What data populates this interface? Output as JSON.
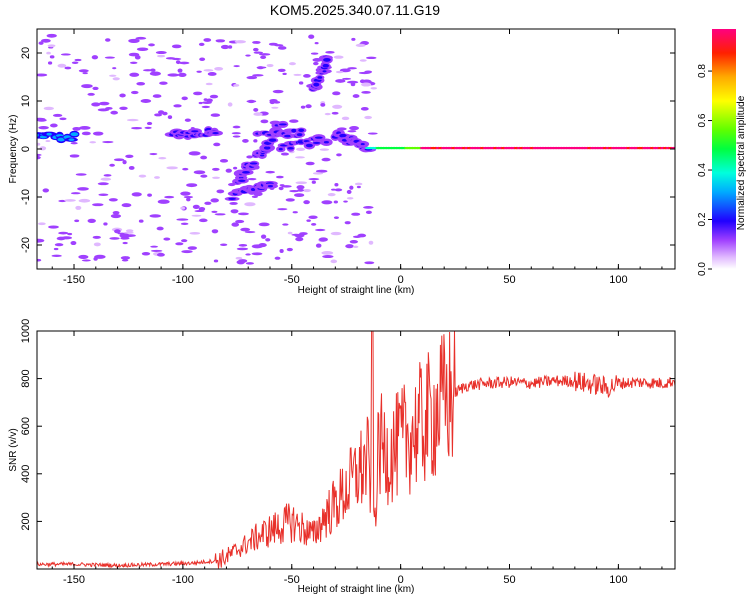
{
  "title": "KOM5.2025.340.07.11.G19",
  "chart_data": [
    {
      "type": "heatmap",
      "xlabel": "Height of straight line (km)",
      "ylabel": "Frequency (Hz)",
      "xlim": [
        -167,
        126
      ],
      "ylim": [
        -25,
        25
      ],
      "xticks": [
        -150,
        -100,
        -50,
        0,
        50,
        100
      ],
      "yticks": [
        -20,
        -10,
        0,
        10,
        20
      ],
      "colorbar": {
        "label": "Normalized spectral amplitude",
        "range": [
          0,
          0.97
        ],
        "ticks": [
          0.0,
          0.2,
          0.4,
          0.6,
          0.8
        ]
      },
      "features": [
        {
          "name": "main carrier line",
          "x": [
            -15,
            126
          ],
          "freq": 0,
          "amplitude": "0.4-0.97"
        },
        {
          "name": "rising track upper",
          "x": [
            -40,
            -33
          ],
          "freq": [
            12,
            19
          ],
          "amplitude": "0.1-0.25"
        },
        {
          "name": "rising track middle",
          "x": [
            -75,
            -55
          ],
          "freq": [
            -7,
            5
          ],
          "amplitude": "0.1-0.25"
        },
        {
          "name": "lower track",
          "x": [
            -77,
            -60
          ],
          "freq": [
            -10,
            -7
          ],
          "amplitude": "0.1-0.2"
        },
        {
          "name": "blob cluster",
          "x": [
            -105,
            -85
          ],
          "freq": [
            2,
            4
          ],
          "amplitude": "0.1-0.25"
        },
        {
          "name": "left edge blob",
          "x": [
            -167,
            -150
          ],
          "freq": [
            2,
            3
          ],
          "amplitude": "0.1-0.25"
        }
      ]
    },
    {
      "type": "line",
      "xlabel": "Height of straight line (km)",
      "ylabel": "SNR (v/v)",
      "xlim": [
        -167,
        126
      ],
      "ylim": [
        0,
        1000
      ],
      "xticks": [
        -150,
        -100,
        -50,
        0,
        50,
        100
      ],
      "yticks": [
        200,
        400,
        600,
        800,
        1000
      ],
      "series": [
        {
          "name": "SNR",
          "color": "#e8302a",
          "x": [
            -167,
            -150,
            -130,
            -110,
            -95,
            -85,
            -80,
            -75,
            -70,
            -65,
            -60,
            -55,
            -50,
            -45,
            -40,
            -35,
            -30,
            -25,
            -20,
            -15,
            -12,
            -10,
            -5,
            0,
            5,
            10,
            15,
            20,
            25,
            30,
            40,
            50,
            60,
            70,
            80,
            85,
            90,
            95,
            100,
            110,
            120,
            126
          ],
          "y": [
            20,
            20,
            15,
            20,
            25,
            35,
            50,
            80,
            110,
            140,
            160,
            180,
            200,
            170,
            140,
            220,
            270,
            330,
            400,
            450,
            200,
            520,
            480,
            530,
            570,
            610,
            650,
            700,
            740,
            770,
            780,
            785,
            780,
            790,
            790,
            780,
            775,
            760,
            780,
            785,
            780,
            790
          ]
        }
      ]
    }
  ],
  "colors": {
    "line": "#e8302a",
    "heatmap_low": "#cc88ff",
    "heatmap_mid": "#0000ff",
    "heatmap_high": "#ff0080"
  }
}
